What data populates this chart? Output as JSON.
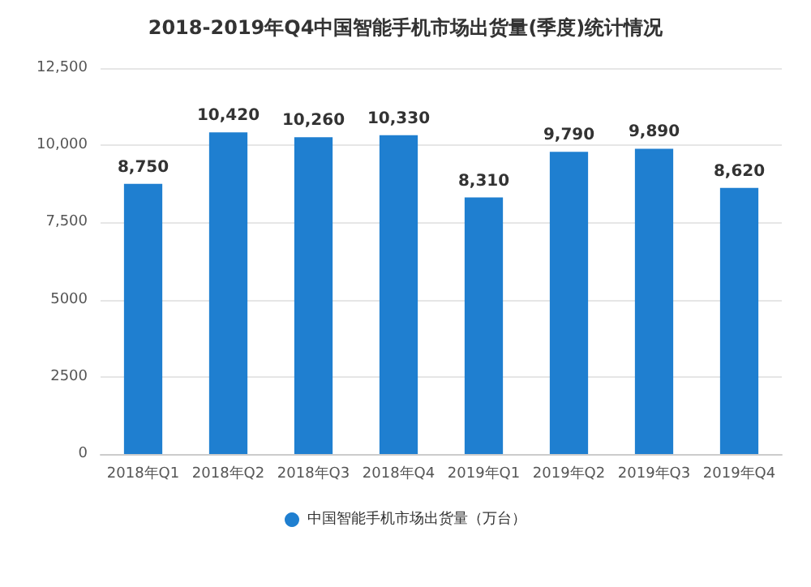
{
  "chart_data": {
    "type": "bar",
    "title": "2018-2019年Q4中国智能手机市场出货量(季度)统计情况",
    "categories": [
      "2018年Q1",
      "2018年Q2",
      "2018年Q3",
      "2018年Q4",
      "2019年Q1",
      "2019年Q2",
      "2019年Q3",
      "2019年Q4"
    ],
    "series": [
      {
        "name": "中国智能手机市场出货量（万台）",
        "color": "#1f7fd0",
        "values": [
          8750,
          10420,
          10260,
          10330,
          8310,
          9790,
          9890,
          8620
        ],
        "value_labels": [
          "8,750",
          "10,420",
          "10,260",
          "10,330",
          "8,310",
          "9,790",
          "9,890",
          "8,620"
        ]
      }
    ],
    "ylim": [
      0,
      12500
    ],
    "yticks": [
      0,
      2500,
      5000,
      {
        "value": 7500,
        "label": "7,500"
      },
      {
        "value": 10000,
        "label": "10,000"
      },
      {
        "value": 12500,
        "label": "12,500"
      }
    ],
    "grid": "y",
    "legend": "bottom"
  }
}
